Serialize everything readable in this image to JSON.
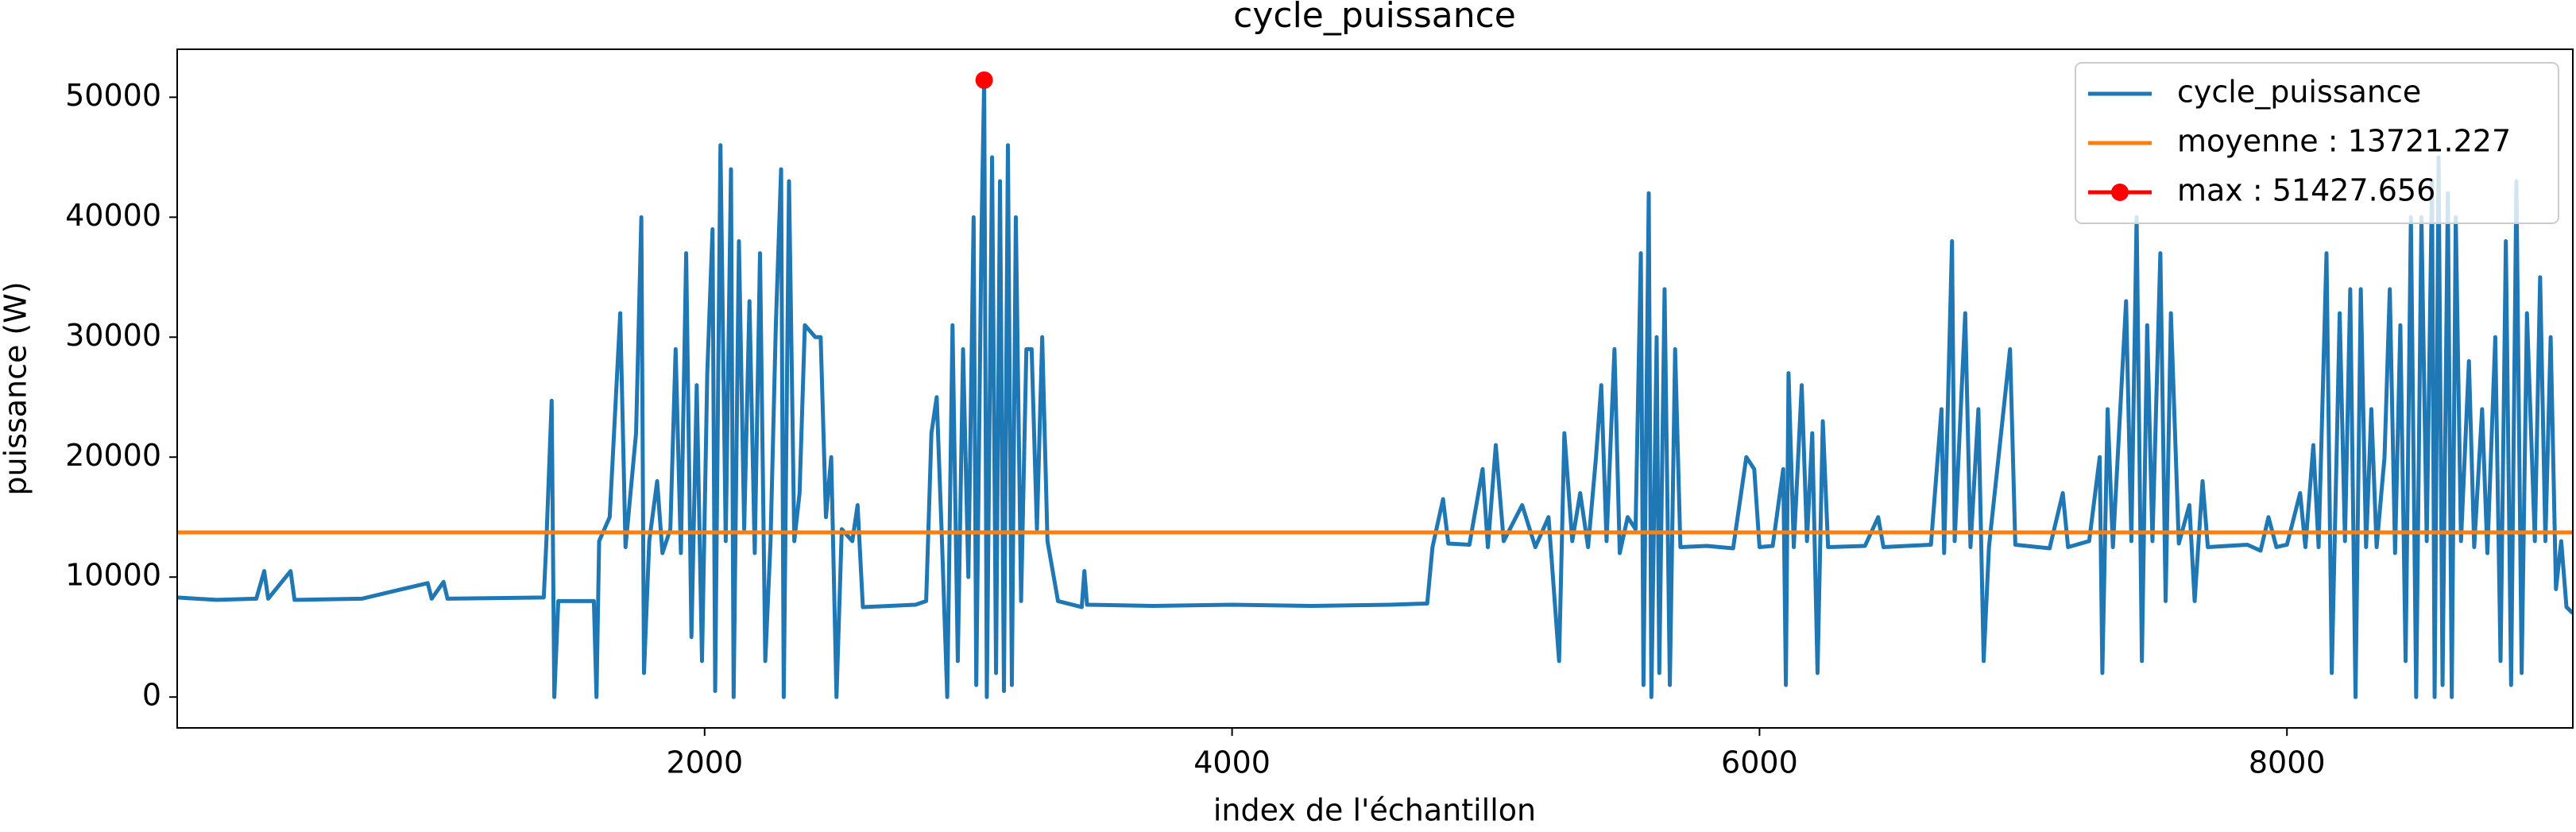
{
  "chart_data": {
    "type": "line",
    "title": "cycle_puissance",
    "x_label": "index de l'échantillon",
    "y_label": "puissance (W)",
    "xlim": [
      0,
      9084
    ],
    "ylim": [
      -2571,
      54000
    ],
    "xticks": [
      2000,
      4000,
      6000,
      8000
    ],
    "yticks": [
      0,
      10000,
      20000,
      30000,
      40000,
      50000
    ],
    "grid": false,
    "legend": "upper right",
    "series": [
      {
        "name": "cycle_puissance",
        "color": "#1f77b4",
        "marker": false,
        "x": [
          0,
          150,
          300,
          330,
          345,
          430,
          445,
          700,
          950,
          965,
          1010,
          1025,
          1390,
          1400,
          1420,
          1430,
          1445,
          1580,
          1590,
          1600,
          1640,
          1680,
          1700,
          1740,
          1760,
          1770,
          1790,
          1820,
          1840,
          1870,
          1890,
          1910,
          1930,
          1950,
          1970,
          1990,
          2010,
          2030,
          2040,
          2060,
          2080,
          2100,
          2110,
          2130,
          2150,
          2170,
          2190,
          2210,
          2230,
          2250,
          2270,
          2290,
          2300,
          2320,
          2340,
          2360,
          2380,
          2400,
          2420,
          2440,
          2460,
          2480,
          2500,
          2520,
          2560,
          2580,
          2600,
          2800,
          2840,
          2860,
          2880,
          2900,
          2920,
          2940,
          2960,
          2980,
          3000,
          3020,
          3030,
          3050,
          3060,
          3070,
          3090,
          3105,
          3120,
          3135,
          3150,
          3165,
          3180,
          3200,
          3220,
          3240,
          3260,
          3280,
          3300,
          3340,
          3430,
          3440,
          3450,
          3700,
          4000,
          4300,
          4600,
          4740,
          4760,
          4800,
          4820,
          4900,
          4950,
          4970,
          5000,
          5030,
          5100,
          5150,
          5200,
          5240,
          5260,
          5290,
          5320,
          5350,
          5380,
          5400,
          5420,
          5450,
          5470,
          5500,
          5530,
          5550,
          5560,
          5580,
          5590,
          5610,
          5620,
          5640,
          5660,
          5680,
          5700,
          5800,
          5900,
          5950,
          5980,
          6000,
          6050,
          6090,
          6100,
          6110,
          6130,
          6160,
          6180,
          6200,
          6220,
          6240,
          6260,
          6400,
          6450,
          6470,
          6650,
          6690,
          6700,
          6730,
          6740,
          6780,
          6800,
          6830,
          6850,
          6870,
          6950,
          6970,
          7100,
          7150,
          7170,
          7250,
          7290,
          7300,
          7320,
          7340,
          7390,
          7410,
          7430,
          7450,
          7470,
          7490,
          7520,
          7540,
          7560,
          7590,
          7630,
          7650,
          7680,
          7700,
          7850,
          7900,
          7930,
          7960,
          8000,
          8050,
          8070,
          8100,
          8120,
          8150,
          8170,
          8200,
          8220,
          8240,
          8260,
          8280,
          8300,
          8320,
          8340,
          8370,
          8390,
          8410,
          8430,
          8450,
          8470,
          8490,
          8510,
          8530,
          8550,
          8560,
          8575,
          8590,
          8610,
          8625,
          8640,
          8660,
          8690,
          8710,
          8740,
          8760,
          8790,
          8810,
          8830,
          8850,
          8870,
          8890,
          8910,
          8940,
          8960,
          8980,
          9000,
          9020,
          9040,
          9060,
          9084
        ],
        "values": [
          8300,
          8100,
          8200,
          10500,
          8200,
          10500,
          8100,
          8200,
          9500,
          8200,
          9600,
          8200,
          8300,
          13000,
          24700,
          0,
          8000,
          8000,
          0,
          13000,
          15000,
          32000,
          12500,
          22000,
          40000,
          2000,
          13000,
          18000,
          12000,
          14000,
          29000,
          12000,
          37000,
          5000,
          26000,
          3000,
          27000,
          39000,
          500,
          46000,
          13000,
          44000,
          0,
          38000,
          14000,
          33000,
          12000,
          37000,
          3000,
          13000,
          31000,
          44000,
          0,
          43000,
          13000,
          17000,
          31000,
          30500,
          30000,
          30000,
          15000,
          20000,
          0,
          14000,
          13000,
          16000,
          7500,
          7700,
          8000,
          22000,
          25000,
          13000,
          0,
          31000,
          3000,
          29000,
          10000,
          40000,
          1000,
          39000,
          51427.656,
          0,
          45000,
          2000,
          43000,
          500,
          46000,
          1000,
          40000,
          8000,
          29000,
          29000,
          14000,
          30000,
          13000,
          8000,
          7500,
          10500,
          7700,
          7600,
          7700,
          7600,
          7700,
          7800,
          12500,
          16500,
          12800,
          12700,
          19000,
          12500,
          21000,
          13000,
          16000,
          12500,
          15000,
          3000,
          22000,
          13000,
          17000,
          12500,
          20000,
          26000,
          13000,
          29000,
          12000,
          15000,
          14000,
          37000,
          1000,
          42000,
          0,
          30000,
          2000,
          34000,
          1000,
          29000,
          12500,
          12600,
          12400,
          20000,
          19000,
          12500,
          12600,
          19000,
          1000,
          27000,
          12500,
          26000,
          13000,
          22000,
          2000,
          23000,
          12500,
          12600,
          15000,
          12500,
          12700,
          24000,
          12000,
          38000,
          13000,
          32000,
          12500,
          24000,
          3000,
          12500,
          29000,
          12700,
          12400,
          17000,
          12500,
          13000,
          20000,
          2000,
          24000,
          12500,
          33000,
          13000,
          40000,
          3000,
          31000,
          13000,
          37000,
          8000,
          32000,
          12800,
          16000,
          8000,
          18000,
          12500,
          12700,
          12200,
          15000,
          12500,
          12700,
          17000,
          12500,
          21000,
          12500,
          37000,
          2000,
          32000,
          13000,
          34000,
          0,
          34000,
          12500,
          24000,
          12500,
          20000,
          34000,
          12000,
          31000,
          3000,
          40000,
          0,
          40000,
          13000,
          43000,
          0,
          45000,
          1000,
          42000,
          0,
          40000,
          13000,
          28000,
          12500,
          24000,
          12000,
          30000,
          3000,
          38000,
          1000,
          43000,
          2000,
          32000,
          13000,
          35000,
          13000,
          30000,
          9000,
          13000,
          7500,
          7000
        ]
      },
      {
        "name": "moyenne : 13721.227",
        "color": "#ff7f0e",
        "marker": false,
        "x": [
          0,
          9084
        ],
        "values": [
          13721.227,
          13721.227
        ]
      },
      {
        "name": "max : 51427.656",
        "color": "#ff0000",
        "marker": true,
        "x": [
          3060
        ],
        "values": [
          51427.656
        ]
      }
    ]
  }
}
